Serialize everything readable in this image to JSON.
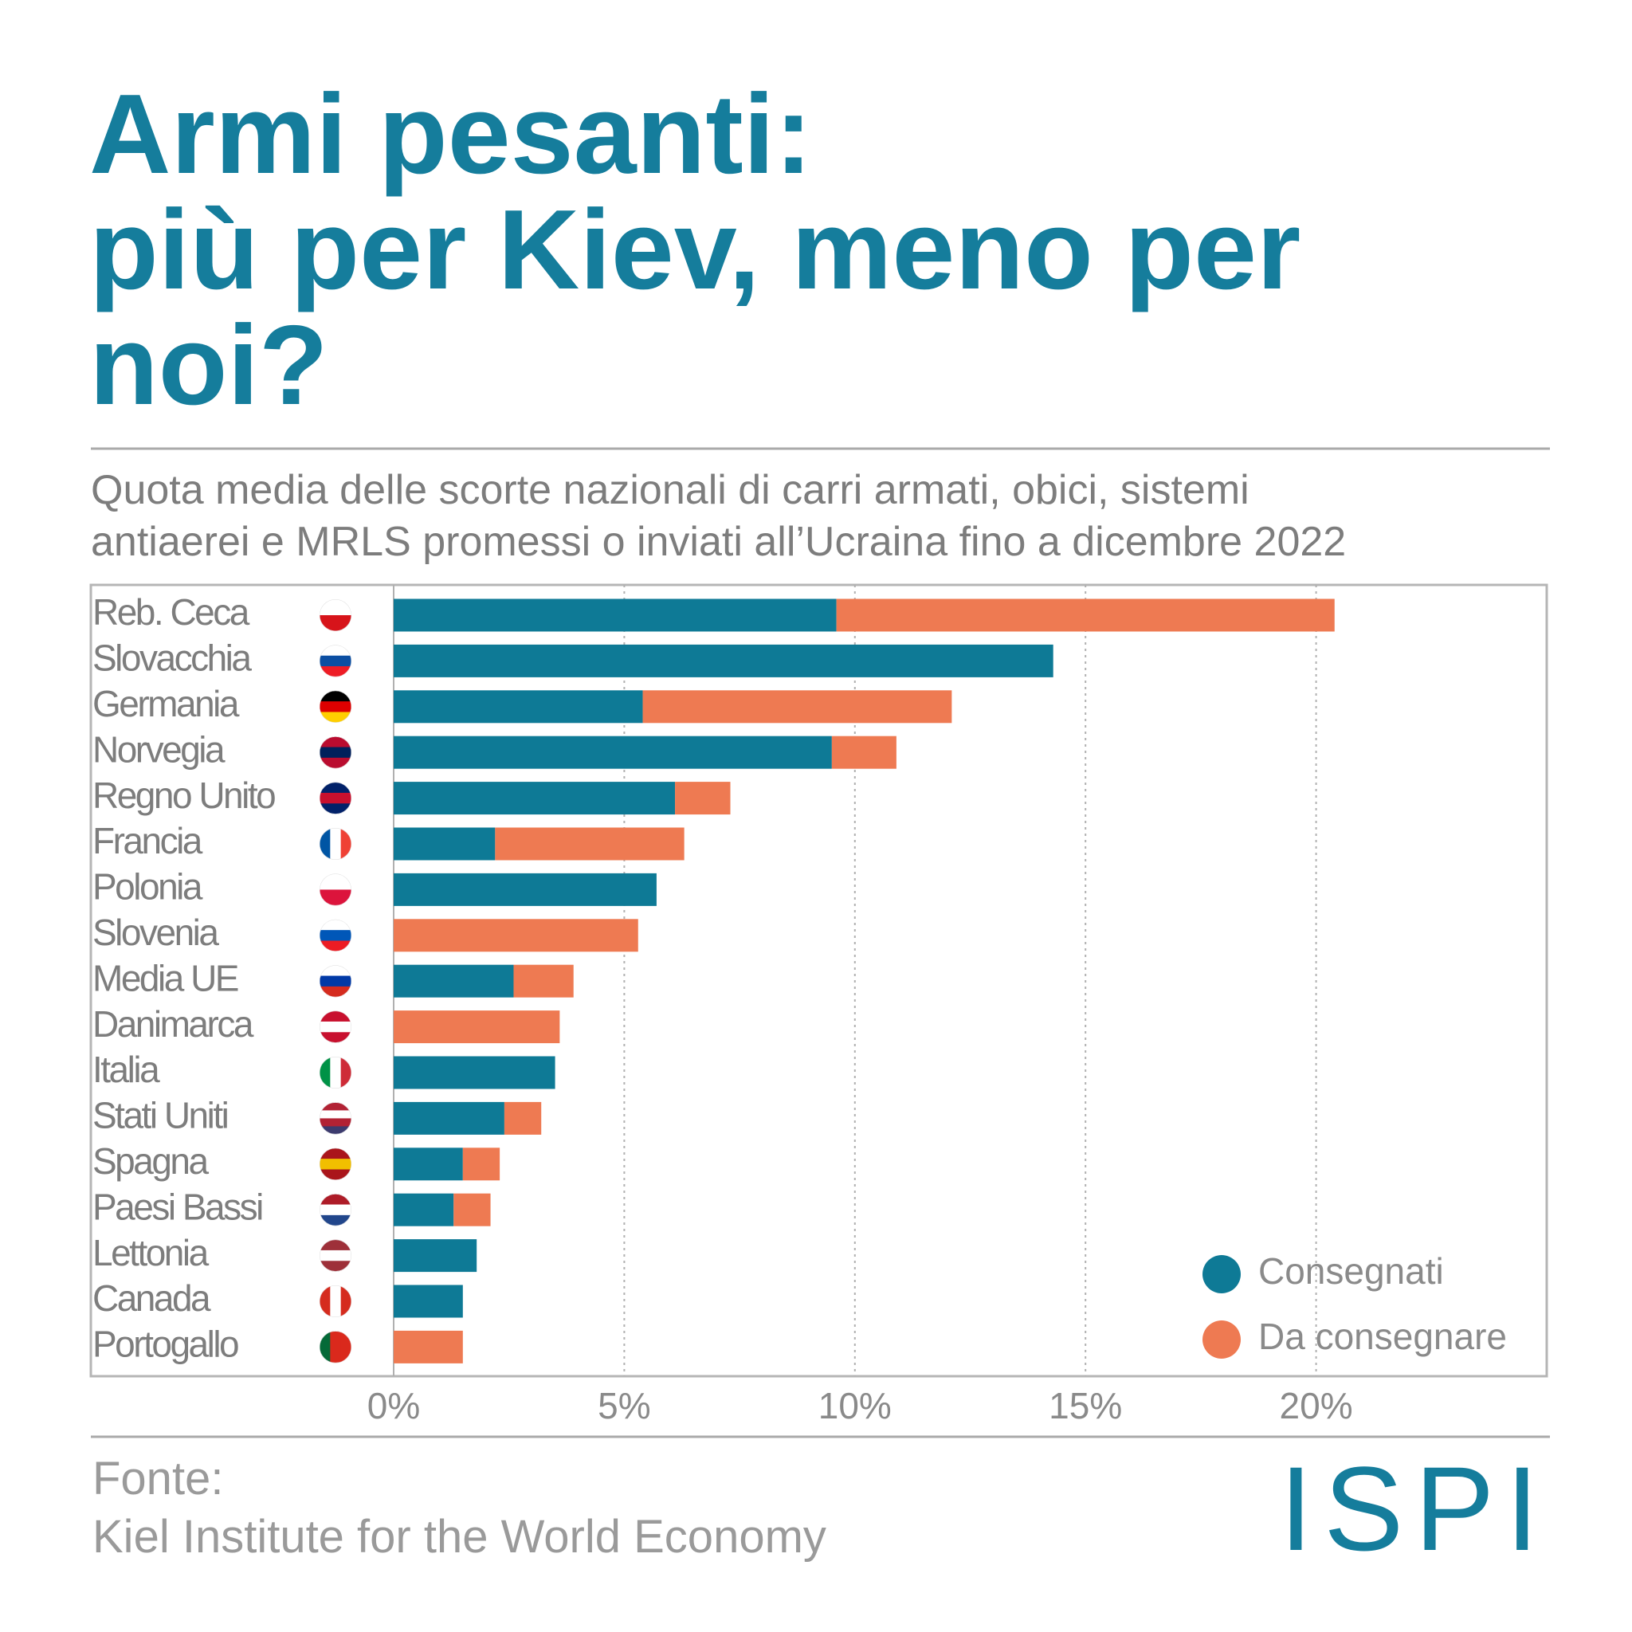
{
  "chart_data": {
    "type": "stacked-bar-horizontal",
    "title": [
      "Armi pesanti:",
      "più per Kiev, meno per",
      "noi?"
    ],
    "subtitle": [
      "Quota media delle scorte nazionali di carri armati, obici, sistemi",
      "antiaerei e MRLS promessi o inviati all’Ucraina fino a dicembre 2022"
    ],
    "categories": [
      "Reb. Ceca",
      "Slovacchia",
      "Germania",
      "Norvegia",
      "Regno Unito",
      "Francia",
      "Polonia",
      "Slovenia",
      "Media UE",
      "Danimarca",
      "Italia",
      "Stati Uniti",
      "Spagna",
      "Paesi Bassi",
      "Lettonia",
      "Canada",
      "Portogallo"
    ],
    "series": [
      {
        "name": "Consegnati",
        "color": "#0e7a96",
        "values": [
          9.6,
          14.3,
          5.4,
          9.5,
          6.1,
          2.2,
          5.7,
          0,
          2.6,
          0,
          3.5,
          2.4,
          1.5,
          1.3,
          1.8,
          1.5,
          0
        ]
      },
      {
        "name": "Da consegnare",
        "color": "#ee7a52",
        "values": [
          10.8,
          0,
          6.7,
          1.4,
          1.2,
          4.1,
          0,
          5.3,
          1.3,
          3.6,
          0,
          0.8,
          0.8,
          0.8,
          0,
          0,
          1.5
        ]
      }
    ],
    "xlim": [
      0,
      25
    ],
    "xticks": [
      {
        "value": 0,
        "label": "0%"
      },
      {
        "value": 5,
        "label": "5%"
      },
      {
        "value": 10,
        "label": "10%"
      },
      {
        "value": 15,
        "label": "15%"
      },
      {
        "value": 20,
        "label": "20%"
      }
    ],
    "grid": true,
    "legend": "bottom right",
    "source": [
      "Fonte:",
      "Kiel Institute for the World Economy"
    ],
    "logo": "ISPI"
  }
}
